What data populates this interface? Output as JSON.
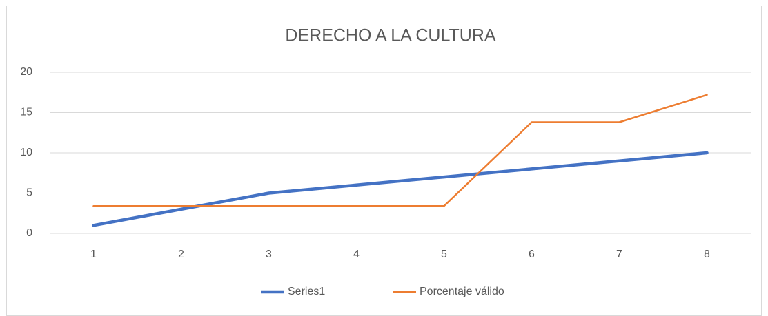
{
  "chart_data": {
    "type": "line",
    "title": "DERECHO A LA CULTURA",
    "categories": [
      "1",
      "2",
      "3",
      "4",
      "5",
      "6",
      "7",
      "8"
    ],
    "series": [
      {
        "name": "Series1",
        "color": "#4472c4",
        "values": [
          1,
          3,
          5,
          6,
          7,
          8,
          9,
          10
        ]
      },
      {
        "name": "Porcentaje válido",
        "color": "#ed7d31",
        "values": [
          3.4,
          3.4,
          3.4,
          3.4,
          3.4,
          13.8,
          13.8,
          17.2
        ]
      }
    ],
    "ylim": [
      0,
      20
    ],
    "yticks": [
      0,
      5,
      10,
      15,
      20
    ],
    "grid": true,
    "legend": "bottom"
  }
}
